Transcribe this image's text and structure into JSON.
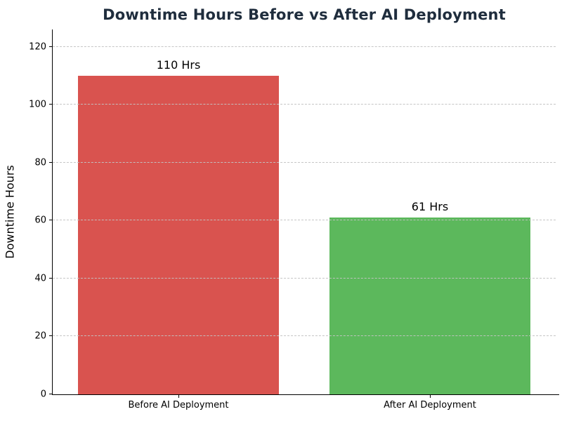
{
  "chart_data": {
    "type": "bar",
    "title": "Downtime Hours Before vs After AI Deployment",
    "xlabel": "",
    "ylabel": "Downtime Hours",
    "categories": [
      "Before AI Deployment",
      "After AI Deployment"
    ],
    "values": [
      110,
      61
    ],
    "bar_labels": [
      "110 Hrs",
      "61 Hrs"
    ],
    "bar_colors": [
      "#d9534f",
      "#5cb85c"
    ],
    "yticks": [
      0,
      20,
      40,
      60,
      80,
      100,
      120
    ],
    "ylim": [
      0,
      126
    ],
    "bar_width_fraction": 0.8,
    "grid": "horizontal-dashed-over-bars",
    "legend": "none",
    "title_color": "#1f2d3d",
    "text_color": "#000000",
    "background_color": "#ffffff"
  }
}
